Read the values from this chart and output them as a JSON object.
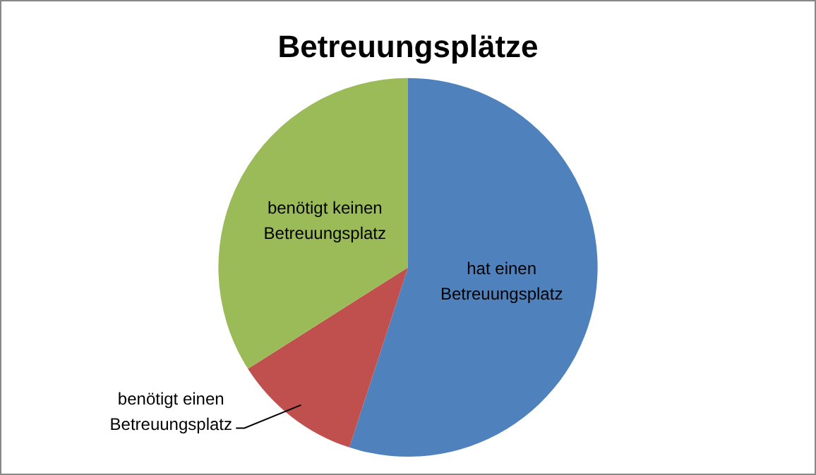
{
  "chart_data": {
    "type": "pie",
    "title": "Betreuungsplätze",
    "categories": [
      "hat einen Betreuungsplatz",
      "benötigt einen Betreuungsplatz",
      "benötigt keinen Betreuungsplatz"
    ],
    "values": [
      55,
      11,
      34
    ],
    "colors": [
      "#4f81bd",
      "#c0504d",
      "#9bbb59"
    ],
    "legend": false
  }
}
